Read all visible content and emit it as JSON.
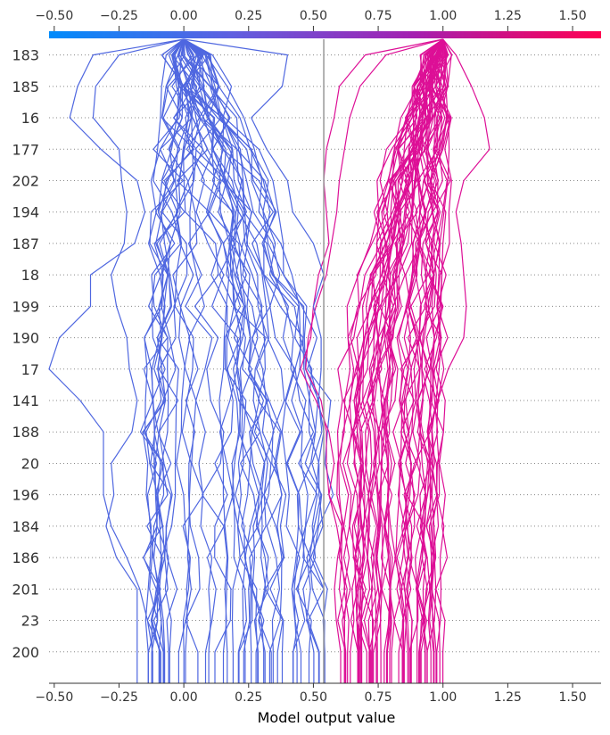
{
  "chart_data": {
    "type": "line",
    "subtype": "shap-decision-plot",
    "xlabel": "Model output value",
    "xlim": [
      -0.52,
      1.61
    ],
    "x_ticks": [
      -0.5,
      -0.25,
      0.0,
      0.25,
      0.5,
      0.75,
      1.0,
      1.25,
      1.5
    ],
    "x_tick_labels": [
      "−0.50",
      "−0.25",
      "0.00",
      "0.25",
      "0.50",
      "0.75",
      "1.00",
      "1.25",
      "1.50"
    ],
    "features": [
      "183",
      "185",
      "16",
      "177",
      "202",
      "194",
      "187",
      "18",
      "199",
      "190",
      "17",
      "141",
      "188",
      "20",
      "196",
      "184",
      "186",
      "201",
      "23",
      "200"
    ],
    "base_value": 0.0,
    "start_value": 1.0,
    "expected_value_line": 0.54,
    "colorbar": {
      "min": -0.5,
      "max": 1.6,
      "colors": [
        "#008bfb",
        "#5f5fe0",
        "#a41fb0",
        "#ff0052"
      ]
    },
    "grid": "dotted horizontal",
    "series_colors": {
      "negative": "#4f67e0",
      "positive": "#dd0f96"
    },
    "series_groups": [
      {
        "start": 0.0,
        "count": 48,
        "final_range": [
          -0.12,
          0.54
        ],
        "amplitude": 0.08
      },
      {
        "start": 1.0,
        "count": 55,
        "final_range": [
          0.6,
          1.0
        ],
        "amplitude": 0.05
      }
    ],
    "highlighted_paths": [
      [
        0.0,
        -0.35,
        -0.41,
        -0.44,
        -0.32,
        -0.18,
        -0.15,
        -0.19,
        -0.36,
        -0.36,
        -0.48,
        -0.52,
        -0.4,
        -0.31,
        -0.31,
        -0.31,
        -0.28,
        -0.22,
        -0.17,
        -0.14,
        -0.12
      ],
      [
        0.0,
        -0.25,
        -0.34,
        -0.35,
        -0.25,
        -0.24,
        -0.22,
        -0.23,
        -0.28,
        -0.26,
        -0.22,
        -0.21,
        -0.18,
        -0.2,
        -0.28,
        -0.27,
        -0.3,
        -0.26,
        -0.18,
        -0.18,
        -0.18
      ],
      [
        1.0,
        1.05,
        1.11,
        1.16,
        1.18,
        1.08,
        1.05,
        1.07,
        1.08,
        1.09,
        1.08,
        1.02,
        0.98,
        0.95,
        0.89,
        0.86,
        0.93,
        0.92,
        0.9,
        0.9,
        0.9
      ],
      [
        1.0,
        0.7,
        0.6,
        0.58,
        0.55,
        0.54,
        0.55,
        0.56,
        0.52,
        0.5,
        0.49,
        0.45,
        0.51,
        0.56,
        0.58,
        0.56,
        0.59,
        0.61,
        0.6,
        0.62,
        0.62
      ],
      [
        1.0,
        0.78,
        0.68,
        0.64,
        0.62,
        0.6,
        0.59,
        0.57,
        0.55,
        0.51,
        0.48,
        0.47,
        0.53,
        0.55,
        0.55,
        0.56,
        0.61,
        0.6,
        0.63,
        0.62,
        0.62
      ],
      [
        0.0,
        0.4,
        0.38,
        0.26,
        0.32,
        0.4,
        0.42,
        0.5,
        0.54,
        0.5,
        0.53,
        0.53,
        0.52,
        0.54,
        0.52,
        0.51,
        0.47,
        0.46,
        0.54,
        0.54,
        0.54
      ]
    ]
  }
}
